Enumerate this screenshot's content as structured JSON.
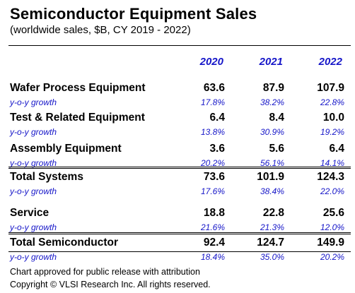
{
  "title": "Semiconductor Equipment Sales",
  "subtitle": "(worldwide sales, $B, CY 2019 - 2022)",
  "growth_label": "y-o-y growth",
  "colors": {
    "accent": "#1515c8",
    "text": "#000000"
  },
  "chart_data": {
    "type": "table",
    "title": "Semiconductor Equipment Sales",
    "subtitle": "(worldwide sales, $B, CY 2019 - 2022)",
    "columns": [
      "2020",
      "2021",
      "2022"
    ],
    "rows": [
      {
        "label": "Wafer Process Equipment",
        "values": [
          "63.6",
          "87.9",
          "107.9"
        ],
        "growth": [
          "17.8%",
          "38.2%",
          "22.8%"
        ]
      },
      {
        "label": "Test & Related Equipment",
        "values": [
          "6.4",
          "8.4",
          "10.0"
        ],
        "growth": [
          "13.8%",
          "30.9%",
          "19.2%"
        ]
      },
      {
        "label": "Assembly Equipment",
        "values": [
          "3.6",
          "5.6",
          "6.4"
        ],
        "growth": [
          "20.2%",
          "56.1%",
          "14.1%"
        ]
      },
      {
        "label": "Total Systems",
        "values": [
          "73.6",
          "101.9",
          "124.3"
        ],
        "growth": [
          "17.6%",
          "38.4%",
          "22.0%"
        ]
      },
      {
        "label": "Service",
        "values": [
          "18.8",
          "22.8",
          "25.6"
        ],
        "growth": [
          "21.6%",
          "21.3%",
          "12.0%"
        ]
      },
      {
        "label": "Total Semiconductor",
        "values": [
          "92.4",
          "124.7",
          "149.9"
        ],
        "growth": [
          "18.4%",
          "35.0%",
          "20.2%"
        ]
      }
    ]
  },
  "footer": {
    "line1": "Chart approved for public release with attribution",
    "line2": "Copyright © VLSI Research Inc. All rights reserved."
  }
}
